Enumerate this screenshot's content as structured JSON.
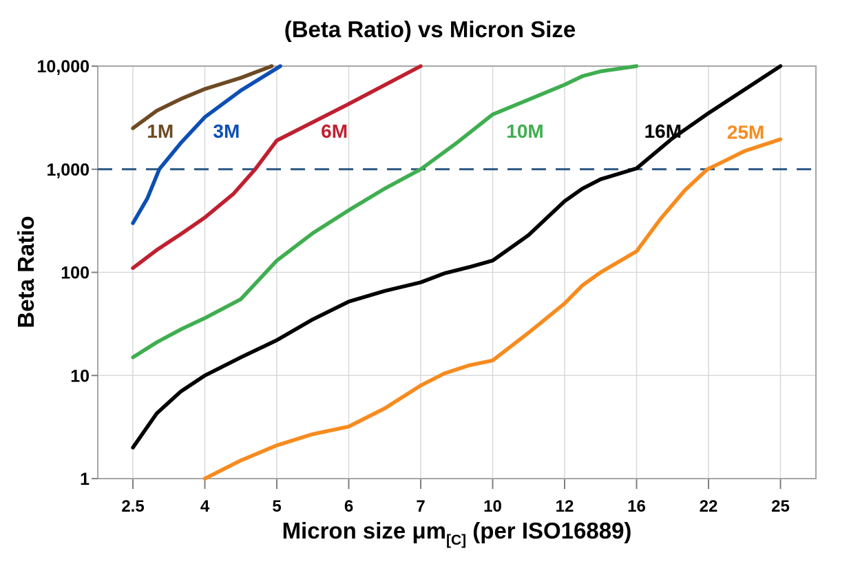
{
  "chart_data": {
    "type": "line",
    "title": "(Beta Ratio) vs Micron Size",
    "ylabel": "Beta Ratio",
    "xlabel": {
      "main": "Micron size μm",
      "sub": "[C]",
      "rest": " (per ISO16889)"
    },
    "x_scale": "categorical-evenly-spaced-ticks",
    "y_scale": "log",
    "ylim": [
      1,
      10000
    ],
    "grid": "on",
    "legend": "inline-curve-labels",
    "x_ticks": [
      {
        "value": 2.5,
        "label": "2.5"
      },
      {
        "value": 4,
        "label": "4"
      },
      {
        "value": 5,
        "label": "5"
      },
      {
        "value": 6,
        "label": "6"
      },
      {
        "value": 7,
        "label": "7"
      },
      {
        "value": 10,
        "label": "10"
      },
      {
        "value": 12,
        "label": "12"
      },
      {
        "value": 16,
        "label": "16"
      },
      {
        "value": 22,
        "label": "22"
      },
      {
        "value": 25,
        "label": "25"
      }
    ],
    "y_ticks": [
      {
        "value": 1,
        "label": "1"
      },
      {
        "value": 10,
        "label": "10"
      },
      {
        "value": 100,
        "label": "100"
      },
      {
        "value": 1000,
        "label": "1,000"
      },
      {
        "value": 10000,
        "label": "10,000"
      }
    ],
    "reference_line": {
      "value": 1000,
      "color": "#2a5784",
      "style": "dashed"
    },
    "colors": {
      "frame": "#a6a6a6",
      "gridline": "#d9d9d9",
      "tick": "#7f7f7f",
      "text": "#000000"
    },
    "series": [
      {
        "name": "1M",
        "color": "#6d4a24",
        "label_pos": {
          "x": 3.07,
          "y": 2350
        },
        "points": [
          [
            2.5,
            2500
          ],
          [
            3,
            3700
          ],
          [
            3.5,
            4800
          ],
          [
            4,
            6000
          ],
          [
            4.5,
            7700
          ],
          [
            4.93,
            10000
          ]
        ]
      },
      {
        "name": "3M",
        "color": "#0d4fb3",
        "label_pos": {
          "x": 4.3,
          "y": 2350
        },
        "points": [
          [
            2.5,
            300
          ],
          [
            2.8,
            520
          ],
          [
            3.05,
            1000
          ],
          [
            3.5,
            1800
          ],
          [
            4,
            3200
          ],
          [
            4.5,
            5800
          ],
          [
            5.05,
            10000
          ]
        ]
      },
      {
        "name": "6M",
        "color": "#bf2030",
        "label_pos": {
          "x": 5.8,
          "y": 2350
        },
        "points": [
          [
            2.5,
            110
          ],
          [
            3,
            165
          ],
          [
            3.5,
            235
          ],
          [
            4,
            340
          ],
          [
            4.4,
            580
          ],
          [
            4.7,
            1000
          ],
          [
            5,
            1900
          ],
          [
            6,
            4300
          ],
          [
            7,
            10000
          ]
        ]
      },
      {
        "name": "10M",
        "color": "#3fae50",
        "label_pos": {
          "x": 10.9,
          "y": 2350
        },
        "points": [
          [
            2.5,
            15
          ],
          [
            3,
            21
          ],
          [
            3.5,
            28
          ],
          [
            4,
            36
          ],
          [
            4.5,
            55
          ],
          [
            5,
            130
          ],
          [
            5.5,
            240
          ],
          [
            6,
            400
          ],
          [
            6.5,
            650
          ],
          [
            7,
            1000
          ],
          [
            8.5,
            1800
          ],
          [
            10,
            3400
          ],
          [
            12,
            6600
          ],
          [
            13,
            8000
          ],
          [
            14,
            8900
          ],
          [
            16,
            10000
          ]
        ]
      },
      {
        "name": "16M",
        "color": "#000000",
        "label_pos": {
          "x": 18.2,
          "y": 2350
        },
        "points": [
          [
            2.5,
            2
          ],
          [
            3,
            4.3
          ],
          [
            3.5,
            7
          ],
          [
            4,
            10
          ],
          [
            4.5,
            15
          ],
          [
            5,
            22
          ],
          [
            5.5,
            35
          ],
          [
            6,
            52
          ],
          [
            6.5,
            66
          ],
          [
            7,
            80
          ],
          [
            8,
            98
          ],
          [
            9,
            112
          ],
          [
            10,
            130
          ],
          [
            11,
            230
          ],
          [
            12,
            490
          ],
          [
            13,
            650
          ],
          [
            14,
            800
          ],
          [
            16,
            1020
          ],
          [
            19,
            2000
          ],
          [
            22,
            3500
          ],
          [
            25,
            10000
          ]
        ]
      },
      {
        "name": "25M",
        "color": "#f78b1e",
        "label_pos": {
          "x": 23.55,
          "y": 2300
        },
        "points": [
          [
            4,
            1
          ],
          [
            4.5,
            1.5
          ],
          [
            5,
            2.1
          ],
          [
            5.5,
            2.7
          ],
          [
            6,
            3.2
          ],
          [
            6.5,
            4.8
          ],
          [
            7,
            8
          ],
          [
            8,
            10.5
          ],
          [
            9,
            12.5
          ],
          [
            10,
            14
          ],
          [
            11,
            26
          ],
          [
            12,
            50
          ],
          [
            13,
            75
          ],
          [
            14,
            100
          ],
          [
            16,
            160
          ],
          [
            18,
            330
          ],
          [
            20,
            620
          ],
          [
            21.9,
            1000
          ],
          [
            22.5,
            1150
          ],
          [
            23.5,
            1500
          ],
          [
            25,
            1950
          ]
        ]
      }
    ]
  }
}
